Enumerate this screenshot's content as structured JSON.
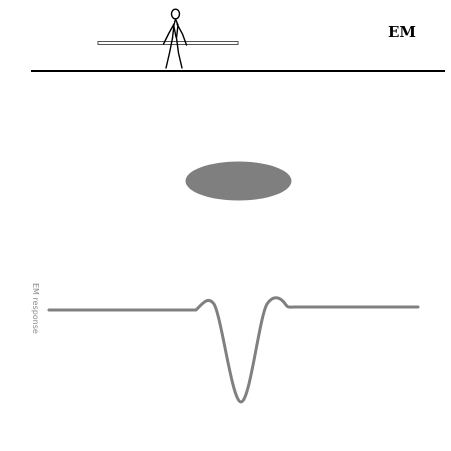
{
  "diagram": {
    "method_label": "EM",
    "y_axis_label": "EM response",
    "colors": {
      "ground": "#000000",
      "target": "#7f7f7f",
      "curve": "#808080",
      "instrument_pole": "#ffffff",
      "operator": "#000000"
    },
    "icons": {
      "operator": "walking-person-icon",
      "instrument": "em-instrument-pole-icon"
    }
  }
}
